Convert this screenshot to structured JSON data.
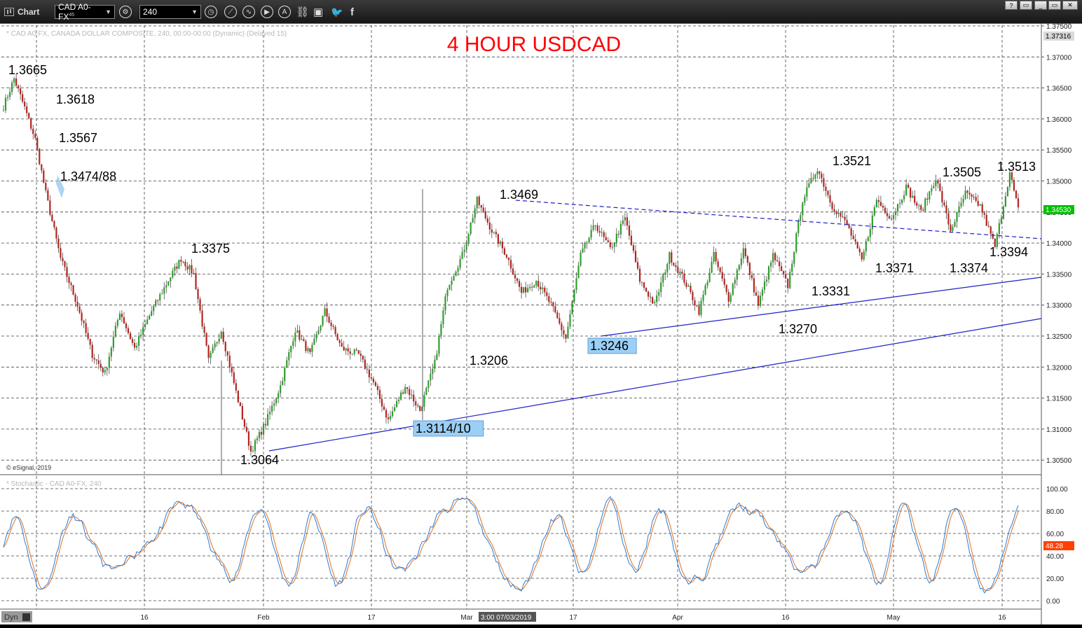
{
  "app": {
    "title": "Chart"
  },
  "toolbar": {
    "symbol": "CAD A0-FX",
    "symbol_sup": "45",
    "interval": "240",
    "icons": [
      "settings-icon",
      "clock-icon",
      "draw-line-icon",
      "wave-icon",
      "play-icon",
      "alert-icon",
      "link-icon",
      "comment-icon",
      "twitter-icon",
      "facebook-icon"
    ]
  },
  "window": {
    "help": "?",
    "restore": "▭",
    "maximize": "▭",
    "close": "✕"
  },
  "chart": {
    "header": "* CAD A0-FX, CANADA DOLLAR COMPOSITE, 240, 00:00-00:00 (Dynamic) (Delayed 15)",
    "title": "4 HOUR USDCAD",
    "copyright": "© eSignal, 2019",
    "lower_header": "* Stochastic - CAD A0-FX, 240",
    "price_top_badge": "1.37316",
    "last_price": "1.34530",
    "stoch_value": "48.28",
    "cursor_time": "3:00 07/03/2019",
    "dyn_label": "Dyn"
  },
  "colors": {
    "title": "#ff0000",
    "up": "#2e9e2e",
    "down": "#b5241f",
    "trendline": "#1f1fc8",
    "price_badge": "#00c000",
    "stoch_badge": "#ff4000",
    "stoch_k": "#2b7bd8",
    "stoch_d": "#e07020"
  },
  "chart_data": {
    "type": "candlestick",
    "y_axis_labels": [
      "1.37500",
      "1.37000",
      "1.36500",
      "1.36000",
      "1.35500",
      "1.35000",
      "1.34500",
      "1.34000",
      "1.33500",
      "1.33000",
      "1.32500",
      "1.32000",
      "1.31500",
      "1.31000",
      "1.30500"
    ],
    "x_axis_labels": [
      "16",
      "Feb",
      "17",
      "Mar",
      "17",
      "Apr",
      "16",
      "May",
      "16"
    ],
    "stoch_axis_labels": [
      "100.00",
      "80.00",
      "60.00",
      "40.00",
      "20.00",
      "0.00"
    ],
    "annotations": [
      "1.3665",
      "1.3618",
      "1.3567",
      "1.3474/88",
      "1.3375",
      "1.3064",
      "1.3114/10",
      "1.3206",
      "1.3469",
      "1.3246",
      "1.3521",
      "1.3331",
      "1.3270",
      "1.3371",
      "1.3505",
      "1.3374",
      "1.3513",
      "1.3394"
    ],
    "series": [
      {
        "type": "candlestick",
        "trend": [
          [
            0,
            1.362
          ],
          [
            5,
            1.3665
          ],
          [
            10,
            1.3618
          ],
          [
            15,
            1.3567
          ],
          [
            20,
            1.348
          ],
          [
            27,
            1.3375
          ],
          [
            35,
            1.33
          ],
          [
            42,
            1.322
          ],
          [
            48,
            1.319
          ],
          [
            55,
            1.329
          ],
          [
            62,
            1.323
          ],
          [
            70,
            1.329
          ],
          [
            78,
            1.334
          ],
          [
            84,
            1.3375
          ],
          [
            90,
            1.335
          ],
          [
            97,
            1.321
          ],
          [
            103,
            1.326
          ],
          [
            110,
            1.316
          ],
          [
            117,
            1.3064
          ],
          [
            124,
            1.311
          ],
          [
            131,
            1.317
          ],
          [
            138,
            1.326
          ],
          [
            145,
            1.322
          ],
          [
            152,
            1.329
          ],
          [
            160,
            1.323
          ],
          [
            168,
            1.322
          ],
          [
            175,
            1.3175
          ],
          [
            182,
            1.3114
          ],
          [
            190,
            1.317
          ],
          [
            197,
            1.313
          ],
          [
            204,
            1.3206
          ],
          [
            210,
            1.333
          ],
          [
            217,
            1.338
          ],
          [
            224,
            1.3469
          ],
          [
            231,
            1.342
          ],
          [
            238,
            1.338
          ],
          [
            245,
            1.332
          ],
          [
            252,
            1.334
          ],
          [
            259,
            1.33
          ],
          [
            266,
            1.3246
          ],
          [
            273,
            1.338
          ],
          [
            280,
            1.343
          ],
          [
            287,
            1.339
          ],
          [
            294,
            1.344
          ],
          [
            301,
            1.334
          ],
          [
            308,
            1.33
          ],
          [
            315,
            1.338
          ],
          [
            322,
            1.334
          ],
          [
            329,
            1.329
          ],
          [
            336,
            1.338
          ],
          [
            343,
            1.331
          ],
          [
            350,
            1.339
          ],
          [
            357,
            1.33
          ],
          [
            364,
            1.338
          ],
          [
            371,
            1.3331
          ],
          [
            378,
            1.347
          ],
          [
            385,
            1.3521
          ],
          [
            392,
            1.346
          ],
          [
            399,
            1.343
          ],
          [
            406,
            1.3371
          ],
          [
            413,
            1.347
          ],
          [
            420,
            1.344
          ],
          [
            427,
            1.349
          ],
          [
            434,
            1.345
          ],
          [
            441,
            1.3505
          ],
          [
            448,
            1.342
          ],
          [
            455,
            1.348
          ],
          [
            462,
            1.346
          ],
          [
            469,
            1.3394
          ],
          [
            476,
            1.3513
          ],
          [
            480,
            1.3453
          ]
        ]
      }
    ],
    "trendlines": [
      {
        "from": [
          "2019-02-01",
          1.3064
        ],
        "to": [
          "2019-05-22",
          1.328
        ]
      },
      {
        "from": [
          "2019-03-20",
          1.325
        ],
        "to": [
          "2019-05-22",
          1.3347
        ]
      },
      {
        "from": [
          "2019-03-05",
          1.3469
        ],
        "to": [
          "2019-05-22",
          1.3405
        ],
        "style": "dashed"
      }
    ]
  }
}
